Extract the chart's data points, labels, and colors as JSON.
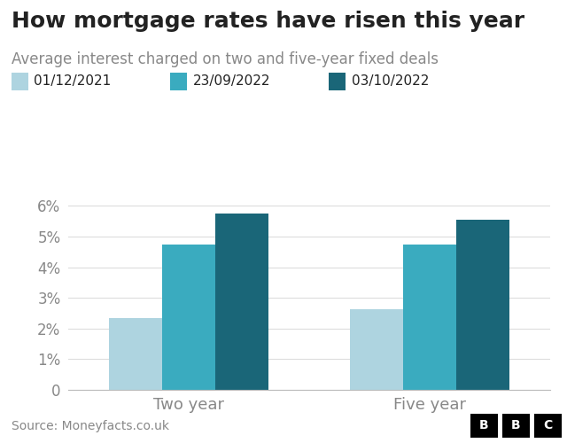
{
  "title": "How mortgage rates have risen this year",
  "subtitle": "Average interest charged on two and five-year fixed deals",
  "categories": [
    "Two year",
    "Five year"
  ],
  "series": [
    {
      "label": "01/12/2021",
      "color": "#aed4e0",
      "values": [
        2.34,
        2.64
      ]
    },
    {
      "label": "23/09/2022",
      "color": "#3aabbf",
      "values": [
        4.74,
        4.74
      ]
    },
    {
      "label": "03/10/2022",
      "color": "#1a6678",
      "values": [
        5.75,
        5.55
      ]
    }
  ],
  "ylim": [
    0,
    6.5
  ],
  "yticks": [
    0,
    1,
    2,
    3,
    4,
    5,
    6
  ],
  "ytick_labels": [
    "0",
    "1%",
    "2%",
    "3%",
    "4%",
    "5%",
    "6%"
  ],
  "source": "Source: Moneyfacts.co.uk",
  "background_color": "#ffffff",
  "bar_width": 0.22,
  "title_fontsize": 18,
  "subtitle_fontsize": 12,
  "legend_fontsize": 11,
  "axis_fontsize": 12,
  "source_fontsize": 10,
  "tick_color": "#888888",
  "spine_color": "#bbbbbb",
  "text_color": "#222222",
  "grid_color": "#dddddd"
}
